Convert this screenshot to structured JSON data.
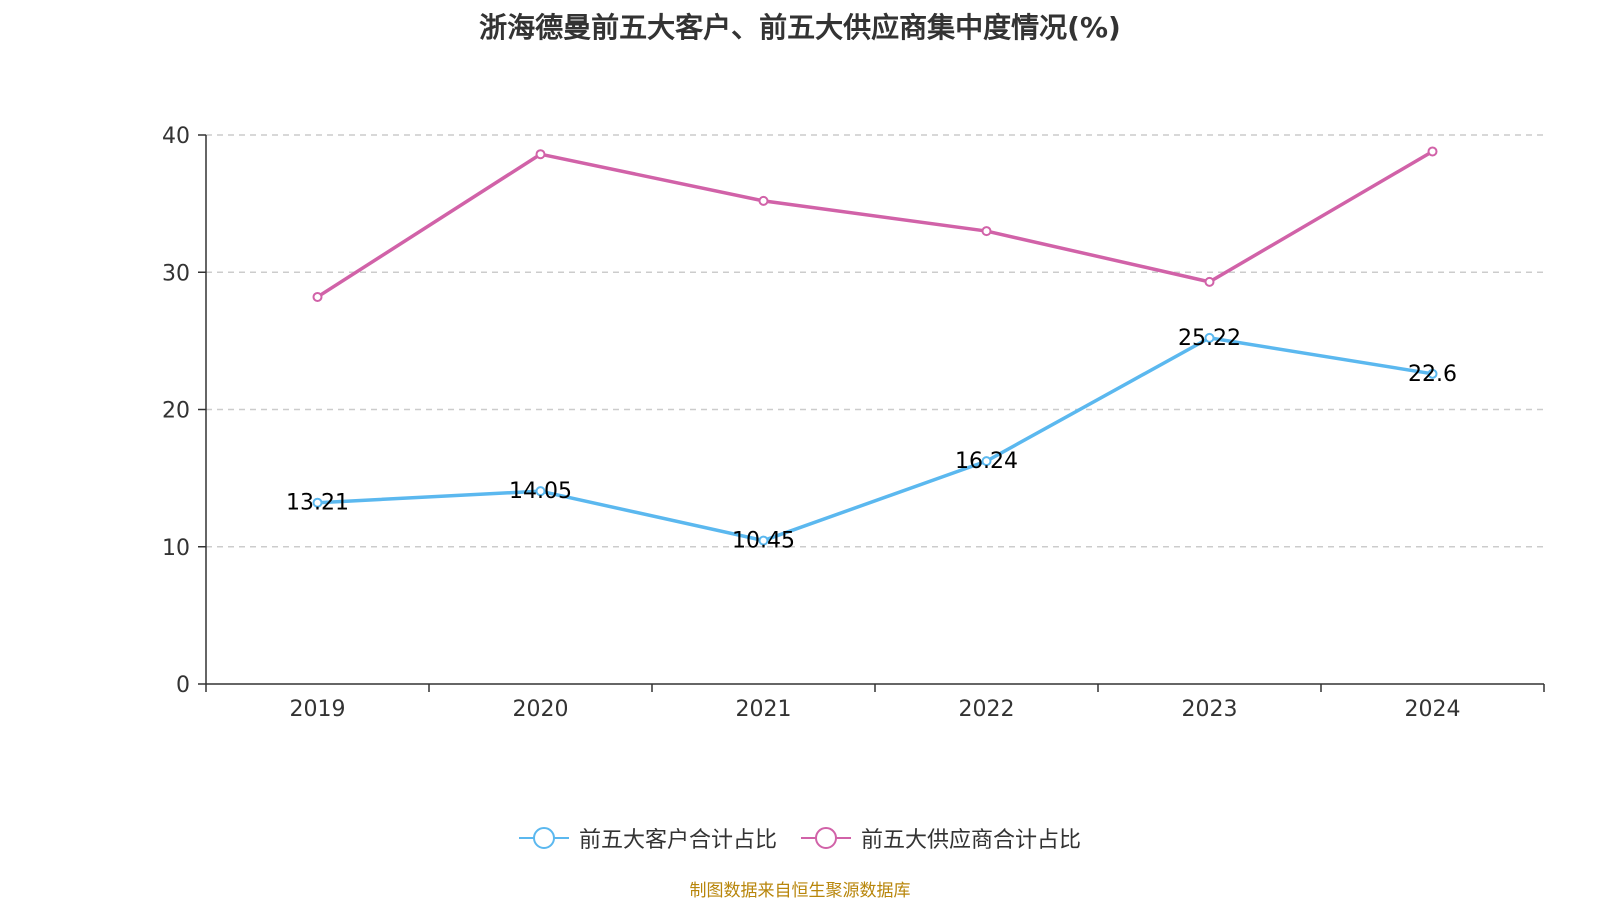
{
  "chart_data": {
    "type": "line",
    "title": "浙海德曼前五大客户、前五大供应商集中度情况(%)",
    "categories": [
      "2019",
      "2020",
      "2021",
      "2022",
      "2023",
      "2024"
    ],
    "ylim": [
      0,
      40
    ],
    "yticks": [
      0,
      10,
      20,
      30,
      40
    ],
    "grid": true,
    "legend_position": "bottom-center",
    "series": [
      {
        "name": "前五大客户合计占比",
        "color": "#5bb8ef",
        "values": [
          13.21,
          14.05,
          10.45,
          16.24,
          25.22,
          22.6
        ],
        "value_labels": [
          "13.21",
          "14.05",
          "10.45",
          "16.24",
          "25.22",
          "22.6"
        ],
        "show_labels": true
      },
      {
        "name": "前五大供应商合计占比",
        "color": "#d162a8",
        "values": [
          28.2,
          38.6,
          35.2,
          33.0,
          29.3,
          38.8
        ],
        "show_labels": false
      }
    ]
  },
  "source": "制图数据来自恒生聚源数据库"
}
